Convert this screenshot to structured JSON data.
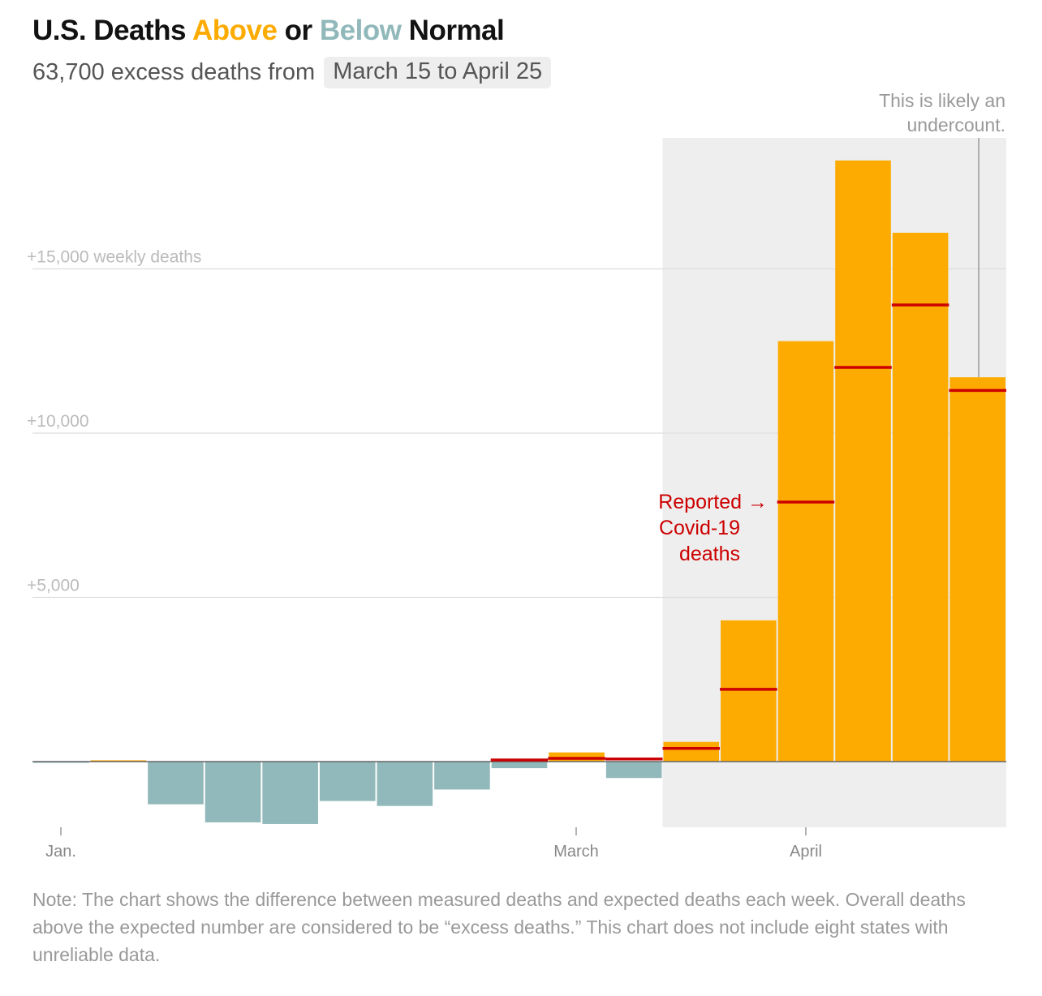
{
  "title": {
    "prefix": "U.S. Deaths ",
    "above": "Above",
    "middle": " or ",
    "below": "Below",
    "suffix": " Normal"
  },
  "subtitle": {
    "text": "63,700 excess deaths from",
    "date_range": "March 15 to April 25"
  },
  "colors": {
    "above": "#FDAB00",
    "below": "#91B8BA",
    "reported": "#CC0000",
    "highlight": "#EEEEEE",
    "grid": "#DDDDDD",
    "axis_label": "#BBBBBB",
    "annotation": "#999999"
  },
  "chart_data": {
    "type": "bar",
    "weeks": 17,
    "values": [
      -20,
      40,
      -1300,
      -1850,
      -1900,
      -1200,
      -1350,
      -850,
      -200,
      280,
      -500,
      600,
      4300,
      12800,
      18300,
      16100,
      11700
    ],
    "reported": [
      null,
      null,
      null,
      null,
      null,
      null,
      null,
      null,
      50,
      100,
      80,
      400,
      2200,
      7900,
      12000,
      13900,
      11300
    ],
    "ylim": [
      -2000,
      20000
    ],
    "yticks": [
      {
        "value": 15000,
        "label": "+15,000 weekly deaths"
      },
      {
        "value": 10000,
        "label": "+10,000"
      },
      {
        "value": 5000,
        "label": "+5,000"
      }
    ],
    "xticks": [
      {
        "week": 0.5,
        "label": "Jan."
      },
      {
        "week": 9.5,
        "label": "March"
      },
      {
        "week": 13.5,
        "label": "April"
      }
    ],
    "highlight_weeks": [
      11,
      17
    ],
    "annotations": {
      "reported": [
        "Reported →",
        "Covid-19",
        "deaths"
      ],
      "undercount": [
        "This is likely an",
        "undercount."
      ]
    }
  },
  "note": "Note: The chart shows the difference between measured deaths and expected deaths each week. Overall deaths above the expected number are considered to be “excess deaths.” This chart does not include eight states with unreliable data."
}
